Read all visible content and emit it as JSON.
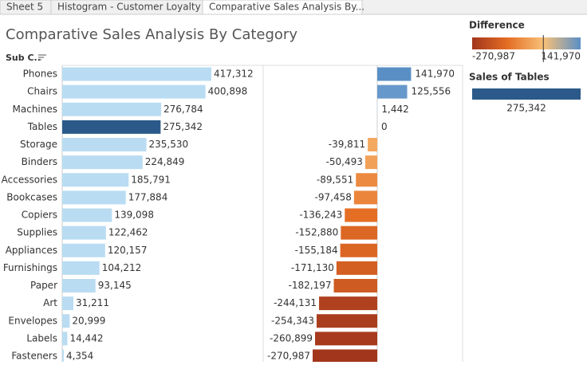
{
  "tabs": [
    "Sheet 5",
    "Histogram - Customer Loyalty",
    "Comparative Sales Analysis By..."
  ],
  "active_tab": 2,
  "chart_data": {
    "type": "bar",
    "title": "Comparative Sales Analysis By Category",
    "y_header": "Sub C..",
    "categories": [
      "Phones",
      "Chairs",
      "Machines",
      "Tables",
      "Storage",
      "Binders",
      "Accessories",
      "Bookcases",
      "Copiers",
      "Supplies",
      "Appliances",
      "Furnishings",
      "Paper",
      "Art",
      "Envelopes",
      "Labels",
      "Fasteners"
    ],
    "sales": {
      "values": [
        417312,
        400898,
        276784,
        275342,
        235530,
        224849,
        185791,
        177884,
        139098,
        122462,
        120157,
        104212,
        93145,
        31211,
        20999,
        14442,
        4354
      ],
      "value_labels": [
        "417,312",
        "400,898",
        "276,784",
        "275,342",
        "235,530",
        "224,849",
        "185,791",
        "177,884",
        "139,098",
        "122,462",
        "120,157",
        "104,212",
        "93,145",
        "31,211",
        "20,999",
        "14,442",
        "4,354"
      ],
      "color": "#b9dcf2"
    },
    "difference": {
      "values": [
        141970,
        125556,
        1442,
        0,
        -39811,
        -50493,
        -89551,
        -97458,
        -136243,
        -152880,
        -155184,
        -171130,
        -182197,
        -244131,
        -254343,
        -260899,
        -270987
      ],
      "value_labels": [
        "141,970",
        "125,556",
        "1,442",
        "0",
        "-39,811",
        "-50,493",
        "-89,551",
        "-97,458",
        "-136,243",
        "-152,880",
        "-155,184",
        "-171,130",
        "-182,197",
        "-244,131",
        "-254,343",
        "-260,899",
        "-270,987"
      ],
      "colors": [
        "#a2361c",
        "#e56e25",
        "#f9c078",
        "#c9def0",
        "#5a8fc6"
      ]
    },
    "color_legend": {
      "title": "Difference",
      "min": {
        "value": -270987,
        "label": "-270,987"
      },
      "max": {
        "value": 141970,
        "label": "141,970"
      }
    },
    "highlight": {
      "title": "Sales of Tables",
      "category": "Tables",
      "value": 275342,
      "label": "275,342",
      "color": "#2b5a8a"
    }
  }
}
